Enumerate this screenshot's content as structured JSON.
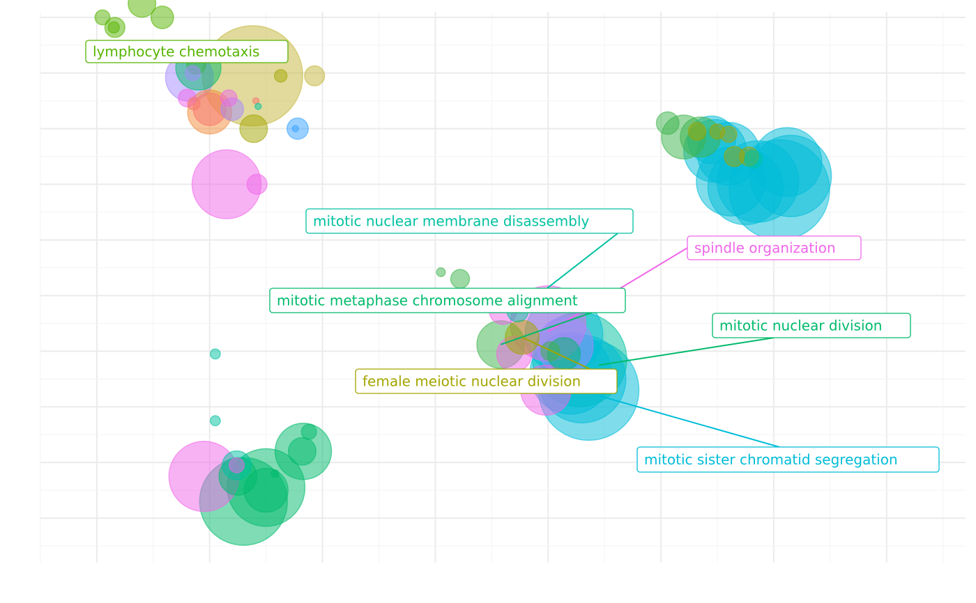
{
  "chart_data": {
    "type": "scatter",
    "title": "",
    "xlabel": "",
    "ylabel": "",
    "grid": true,
    "legend": "none",
    "xlim": [
      -0.5,
      7.7
    ],
    "ylim": [
      -0.8,
      9.1
    ],
    "tick_labels_visible": false,
    "colors": {
      "lime": "#56B400",
      "green": "#3CB44B",
      "emerald": "#00BA6B",
      "teal": "#00C1A0",
      "cyan": "#00BCD8",
      "sky": "#35A2FF",
      "purple": "#A58AFF",
      "pink": "#F066EA",
      "magenta": "#FB61D7",
      "salmon": "#F8766D",
      "orange": "#F38B3B",
      "olive": "#A3A500",
      "khaki": "#C4B63A"
    },
    "points": [
      {
        "x": 0.05,
        "y": 9.0,
        "size": 1.2,
        "group": "lime"
      },
      {
        "x": 0.4,
        "y": 9.25,
        "size": 2.2,
        "group": "lime"
      },
      {
        "x": 0.58,
        "y": 9.0,
        "size": 1.8,
        "group": "lime"
      },
      {
        "x": 0.16,
        "y": 8.82,
        "size": 1.6,
        "group": "lime"
      },
      {
        "x": 0.15,
        "y": 8.82,
        "size": 0.9,
        "group": "lime"
      },
      {
        "x": 1.38,
        "y": 7.95,
        "size": 8.0,
        "group": "khaki"
      },
      {
        "x": 1.63,
        "y": 7.95,
        "size": 1.0,
        "group": "olive"
      },
      {
        "x": 1.93,
        "y": 7.95,
        "size": 1.6,
        "group": "khaki"
      },
      {
        "x": 0.9,
        "y": 8.1,
        "size": 3.6,
        "group": "emerald"
      },
      {
        "x": 0.88,
        "y": 8.15,
        "size": 1.5,
        "group": "green"
      },
      {
        "x": 0.82,
        "y": 7.92,
        "size": 3.8,
        "group": "purple"
      },
      {
        "x": 0.85,
        "y": 8.0,
        "size": 1.2,
        "group": "purple"
      },
      {
        "x": 0.8,
        "y": 7.55,
        "size": 1.4,
        "group": "pink"
      },
      {
        "x": 0.86,
        "y": 7.45,
        "size": 1.0,
        "group": "salmon"
      },
      {
        "x": 1.0,
        "y": 7.3,
        "size": 3.5,
        "group": "orange"
      },
      {
        "x": 1.0,
        "y": 7.35,
        "size": 2.6,
        "group": "salmon"
      },
      {
        "x": 1.2,
        "y": 7.35,
        "size": 1.8,
        "group": "purple"
      },
      {
        "x": 1.17,
        "y": 7.55,
        "size": 1.3,
        "group": "pink"
      },
      {
        "x": 1.39,
        "y": 7.0,
        "size": 2.2,
        "group": "olive"
      },
      {
        "x": 1.41,
        "y": 7.5,
        "size": 0.5,
        "group": "salmon"
      },
      {
        "x": 1.43,
        "y": 7.4,
        "size": 0.5,
        "group": "teal"
      },
      {
        "x": 1.78,
        "y": 7.0,
        "size": 1.7,
        "group": "sky"
      },
      {
        "x": 1.76,
        "y": 7.0,
        "size": 0.5,
        "group": "sky"
      },
      {
        "x": 1.15,
        "y": 6.0,
        "size": 5.5,
        "group": "pink"
      },
      {
        "x": 1.42,
        "y": 6.0,
        "size": 1.6,
        "group": "pink"
      },
      {
        "x": 3.05,
        "y": 4.42,
        "size": 0.7,
        "group": "green"
      },
      {
        "x": 3.22,
        "y": 4.3,
        "size": 1.5,
        "group": "green"
      },
      {
        "x": 3.6,
        "y": 3.73,
        "size": 2.2,
        "group": "pink"
      },
      {
        "x": 3.73,
        "y": 3.72,
        "size": 1.7,
        "group": "teal"
      },
      {
        "x": 3.58,
        "y": 3.12,
        "size": 3.8,
        "group": "green"
      },
      {
        "x": 3.7,
        "y": 2.95,
        "size": 2.8,
        "group": "pink"
      },
      {
        "x": 3.77,
        "y": 3.25,
        "size": 2.7,
        "group": "olive"
      },
      {
        "x": 4.0,
        "y": 3.5,
        "size": 6.0,
        "group": "pink"
      },
      {
        "x": 4.14,
        "y": 3.3,
        "size": 6.2,
        "group": "cyan"
      },
      {
        "x": 4.28,
        "y": 2.85,
        "size": 7.5,
        "group": "teal"
      },
      {
        "x": 4.36,
        "y": 2.3,
        "size": 8.0,
        "group": "cyan"
      },
      {
        "x": 4.3,
        "y": 2.5,
        "size": 7.0,
        "group": "cyan"
      },
      {
        "x": 4.2,
        "y": 2.6,
        "size": 6.5,
        "group": "cyan"
      },
      {
        "x": 4.15,
        "y": 3.1,
        "size": 4.5,
        "group": "purple"
      },
      {
        "x": 3.98,
        "y": 2.3,
        "size": 4.0,
        "group": "pink"
      },
      {
        "x": 4.14,
        "y": 2.95,
        "size": 2.6,
        "group": "emerald"
      },
      {
        "x": 4.02,
        "y": 3.0,
        "size": 1.5,
        "group": "green"
      },
      {
        "x": 4.07,
        "y": 2.55,
        "size": 1.0,
        "group": "teal"
      },
      {
        "x": 5.06,
        "y": 7.1,
        "size": 1.8,
        "group": "green"
      },
      {
        "x": 5.2,
        "y": 6.85,
        "size": 3.5,
        "group": "green"
      },
      {
        "x": 5.35,
        "y": 6.85,
        "size": 3.2,
        "group": "green"
      },
      {
        "x": 5.45,
        "y": 6.8,
        "size": 3.8,
        "group": "cyan"
      },
      {
        "x": 5.48,
        "y": 6.6,
        "size": 5.0,
        "group": "cyan"
      },
      {
        "x": 5.6,
        "y": 6.55,
        "size": 5.0,
        "group": "cyan"
      },
      {
        "x": 5.62,
        "y": 6.05,
        "size": 5.5,
        "group": "cyan"
      },
      {
        "x": 5.75,
        "y": 5.95,
        "size": 6.0,
        "group": "cyan"
      },
      {
        "x": 5.86,
        "y": 6.05,
        "size": 6.5,
        "group": "cyan"
      },
      {
        "x": 6.05,
        "y": 5.9,
        "size": 8.0,
        "group": "cyan"
      },
      {
        "x": 6.12,
        "y": 6.4,
        "size": 5.5,
        "group": "cyan"
      },
      {
        "x": 6.15,
        "y": 6.15,
        "size": 6.5,
        "group": "cyan"
      },
      {
        "x": 5.32,
        "y": 6.95,
        "size": 1.4,
        "group": "olive"
      },
      {
        "x": 5.5,
        "y": 6.95,
        "size": 1.2,
        "group": "olive"
      },
      {
        "x": 5.6,
        "y": 6.9,
        "size": 1.3,
        "group": "olive"
      },
      {
        "x": 5.65,
        "y": 6.5,
        "size": 1.6,
        "group": "olive"
      },
      {
        "x": 5.78,
        "y": 6.5,
        "size": 1.5,
        "group": "olive"
      },
      {
        "x": 5.82,
        "y": 6.45,
        "size": 1.4,
        "group": "teal"
      },
      {
        "x": 1.05,
        "y": 2.95,
        "size": 0.8,
        "group": "teal"
      },
      {
        "x": 1.05,
        "y": 1.75,
        "size": 0.8,
        "group": "teal"
      },
      {
        "x": 0.95,
        "y": 0.75,
        "size": 5.6,
        "group": "pink"
      },
      {
        "x": 1.24,
        "y": 0.95,
        "size": 2.3,
        "group": "teal"
      },
      {
        "x": 1.24,
        "y": 0.95,
        "size": 1.2,
        "group": "pink"
      },
      {
        "x": 1.25,
        "y": 0.75,
        "size": 3.0,
        "group": "emerald"
      },
      {
        "x": 1.3,
        "y": 0.3,
        "size": 7.0,
        "group": "emerald"
      },
      {
        "x": 1.5,
        "y": 0.55,
        "size": 6.2,
        "group": "emerald"
      },
      {
        "x": 1.5,
        "y": 0.5,
        "size": 3.5,
        "group": "emerald"
      },
      {
        "x": 1.58,
        "y": 0.8,
        "size": 0.6,
        "group": "emerald"
      },
      {
        "x": 1.83,
        "y": 1.2,
        "size": 4.5,
        "group": "emerald"
      },
      {
        "x": 1.82,
        "y": 1.2,
        "size": 2.2,
        "group": "emerald"
      },
      {
        "x": 1.88,
        "y": 1.55,
        "size": 1.2,
        "group": "emerald"
      }
    ],
    "annotations": [
      {
        "text": "lymphocyte chemotaxis",
        "group": "lime",
        "px": 0.16,
        "py": 8.82
      },
      {
        "text": "mitotic nuclear membrane disassembly",
        "group": "teal",
        "px": 3.73,
        "py": 3.72
      },
      {
        "text": "spindle organization",
        "group": "pink",
        "px": 4.0,
        "py": 3.35
      },
      {
        "text": "mitotic metaphase chromosome alignment",
        "group": "emerald",
        "px": 3.58,
        "py": 3.12
      },
      {
        "text": "mitotic nuclear division",
        "group": "emerald",
        "px": 4.45,
        "py": 2.75
      },
      {
        "text": "female meiotic nuclear division",
        "group": "olive",
        "px": 3.77,
        "py": 3.25
      },
      {
        "text": "mitotic sister chromatid segregation",
        "group": "cyan",
        "px": 4.45,
        "py": 2.2
      }
    ]
  }
}
